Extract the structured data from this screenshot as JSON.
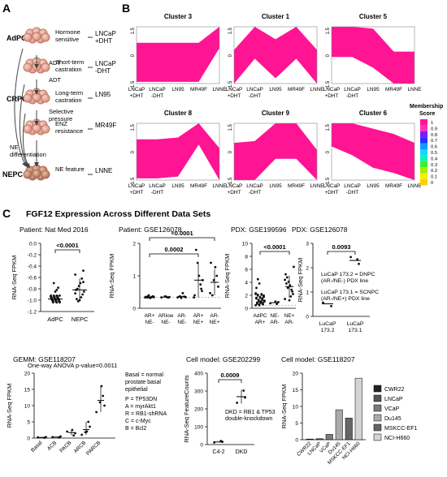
{
  "panel_labels": {
    "a": "A",
    "b": "B",
    "c": "C"
  },
  "panel_a": {
    "stage_labels": {
      "adpc": "AdPC",
      "crpc": "CRPC",
      "nepc": "NEPC"
    },
    "transitions": {
      "adt1": "ADT",
      "adt2": "ADT",
      "selective_1": "Selective",
      "selective_2": "pressure",
      "ne_diff_1": "NE",
      "ne_diff_2": "differentiation"
    },
    "stages": [
      {
        "desc_1": "Hormone",
        "desc_2": "sensitive",
        "line_1": "LNCaP",
        "line_2": "+DHT"
      },
      {
        "desc_1": "Short-term",
        "desc_2": "castration",
        "line_1": "LNCaP",
        "line_2": "-DHT"
      },
      {
        "desc_1": "Long-term",
        "desc_2": "castration",
        "line_1": "LN95",
        "line_2": ""
      },
      {
        "desc_1": "ENZ",
        "desc_2": "resistance",
        "line_1": "MR49F",
        "line_2": ""
      },
      {
        "desc_1": "NE feature",
        "desc_2": "",
        "line_1": "LNNE",
        "line_2": ""
      }
    ]
  },
  "panel_b": {
    "x_labels": [
      [
        "LNCaP",
        "+DHT"
      ],
      [
        "LNCaP",
        "-DHT"
      ],
      [
        "LN95",
        ""
      ],
      [
        "MR49F",
        ""
      ],
      [
        "LNNE",
        ""
      ]
    ],
    "legend_title_1": "Membership",
    "legend_title_2": "Score",
    "legend_ticks": [
      "1",
      "0.9",
      "0.8",
      "0.7",
      "0.6",
      "0.5",
      "0.4",
      "0.3",
      "0.2",
      "0.1",
      "0"
    ],
    "colors": [
      "#ff1493",
      "#ff2fb0",
      "#7a1cff",
      "#1e36ff",
      "#1896ff",
      "#10d8ff",
      "#14f0b8",
      "#3cf02a",
      "#a0f000",
      "#f2f000",
      "#ffce00"
    ],
    "y_ticks": [
      "1.5",
      "0",
      "-1.5"
    ]
  },
  "panel_c_title": "FGF12 Expression Across Different Data Sets",
  "chart_data": [
    {
      "type": "scatter",
      "title": "Patient: Nat Med 2016",
      "ylabel": "RNA-Seq FPKM",
      "ylim": [
        -1.2,
        0.2
      ],
      "yticks": [
        "0.0",
        "-0.2",
        "-0.4",
        "-0.6",
        "-0.8",
        "-1.0",
        "-1.2"
      ],
      "categories": [
        "AdPC",
        "NEPC"
      ],
      "medians": [
        -0.98,
        -0.82
      ],
      "significance": [
        "<0.0001"
      ]
    },
    {
      "type": "scatter",
      "title": "Patient: GSE126078",
      "ylabel": "RNA-Seq FPKM",
      "ylim": [
        -0.5,
        2.5
      ],
      "yticks": [
        "2",
        "1",
        "0"
      ],
      "categories": [
        [
          "AR+",
          "NE-"
        ],
        [
          "ARlow",
          "NE-"
        ],
        [
          "AR-",
          "NE-"
        ],
        [
          "AR+",
          "NE+"
        ],
        [
          "AR-",
          "NE+"
        ]
      ],
      "significance": [
        "<0.0001",
        "0.0002"
      ]
    },
    {
      "type": "scatter",
      "title": "PDX: GSE199596",
      "ylabel": "RNA-Seq FPKM",
      "ylim": [
        -0.5,
        10
      ],
      "yticks": [
        "10",
        "8",
        "6",
        "4",
        "2",
        "0"
      ],
      "categories": [
        [
          "AdPC",
          "AR+"
        ],
        [
          "NE-",
          "AR-"
        ],
        [
          "NE+",
          "AR-"
        ]
      ],
      "significance": [
        "<0.0001"
      ]
    },
    {
      "type": "scatter",
      "title": "PDX: GSE126078",
      "ylabel": "RNA-Seq FPKM",
      "ylim": [
        -0.2,
        3
      ],
      "yticks": [
        "3",
        "2",
        "1",
        "0"
      ],
      "categories": [
        [
          "LuCaP",
          "173.2"
        ],
        [
          "LuCaP",
          "173.1"
        ]
      ],
      "medians": [
        0.35,
        2.25
      ],
      "significance": [
        "0.0093"
      ],
      "notes": [
        [
          "LuCaP 173.2 = DNPC",
          "(AR-/NE-) PDX line"
        ],
        [
          "LuCaP 173.1 = SCNPC",
          "(AR-/NE+) PDX line"
        ]
      ]
    },
    {
      "type": "scatter",
      "title": "GEMM: GSE118207",
      "ylabel": "RNA-Seq FPKM",
      "ylim": [
        0,
        20
      ],
      "yticks": [
        "20",
        "15",
        "10",
        "5",
        "0"
      ],
      "categories": [
        "Basal",
        "ACB",
        "PACB",
        "ARCB",
        "PARCB"
      ],
      "annotation": "One-way ANOVA p-value=0.0011",
      "notes": [
        "Basal = normal",
        "prostate basal",
        "epithelial"
      ],
      "legend_lines": [
        "P = TP53DN",
        "A = myrAkt1",
        "R = RB1-shRNA",
        "C = c-Myc",
        "B = Bcl2"
      ]
    },
    {
      "type": "scatter",
      "title": "Cell model: GSE202299",
      "ylabel": "RNA-Seq FeatureCounts",
      "ylim": [
        -10,
        400
      ],
      "yticks": [
        "400",
        "300",
        "200",
        "100",
        "0"
      ],
      "categories": [
        "C4-2",
        "DKD"
      ],
      "medians": [
        5,
        265
      ],
      "significance": [
        "0.0009"
      ],
      "notes": [
        "DKD = RB1 & TP53",
        "double-knockdown"
      ]
    },
    {
      "type": "bar",
      "title": "Cell model: GSE118207",
      "ylabel": "RNA-Seq FPKM",
      "ylim": [
        0,
        20
      ],
      "yticks": [
        "20",
        "15",
        "10",
        "5",
        "0"
      ],
      "categories": [
        "CWR22",
        "LNCaP",
        "VCaP",
        "Du145",
        "MSKCC-EF1",
        "NCI-H660"
      ],
      "values": [
        0.2,
        0.3,
        1.6,
        9,
        6.5,
        18.5
      ],
      "colors": [
        "#222222",
        "#555555",
        "#7a7a7a",
        "#aaaaaa",
        "#666666",
        "#d4d4d4"
      ]
    }
  ]
}
